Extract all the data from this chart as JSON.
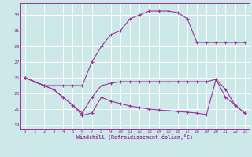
{
  "xlabel": "Windchill (Refroidissement éolien,°C)",
  "xlim": [
    -0.5,
    23.5
  ],
  "ylim": [
    18.5,
    34.5
  ],
  "yticks": [
    19,
    21,
    23,
    25,
    27,
    29,
    31,
    33
  ],
  "xticks": [
    0,
    1,
    2,
    3,
    4,
    5,
    6,
    7,
    8,
    9,
    10,
    11,
    12,
    13,
    14,
    15,
    16,
    17,
    18,
    19,
    20,
    21,
    22,
    23
  ],
  "bg_color": "#cce8e8",
  "grid_color": "#ffffff",
  "line_color": "#993399",
  "line1_x": [
    0,
    1,
    2,
    3,
    4,
    5,
    6,
    7,
    8,
    9,
    10,
    11,
    12,
    13,
    14,
    15,
    16,
    17,
    18,
    19,
    20,
    21,
    22,
    23
  ],
  "line1_y": [
    25,
    24.5,
    24.0,
    24.0,
    24.0,
    24.0,
    24.0,
    27.0,
    29.0,
    30.5,
    31.0,
    32.5,
    33.0,
    33.5,
    33.5,
    33.5,
    33.3,
    32.5,
    29.5,
    29.5,
    29.5,
    29.5,
    29.5,
    29.5
  ],
  "line2_x": [
    0,
    1,
    2,
    3,
    4,
    5,
    6,
    7,
    8,
    9,
    10,
    11,
    12,
    13,
    14,
    15,
    16,
    17,
    18,
    19,
    20,
    21,
    22,
    23
  ],
  "line2_y": [
    25,
    24.5,
    24.0,
    23.5,
    22.5,
    21.5,
    20.5,
    22.5,
    24.0,
    24.3,
    24.5,
    24.5,
    24.5,
    24.5,
    24.5,
    24.5,
    24.5,
    24.5,
    24.5,
    24.5,
    24.8,
    23.5,
    21.5,
    20.5
  ],
  "line3_x": [
    0,
    1,
    2,
    3,
    4,
    5,
    6,
    7,
    8,
    9,
    10,
    11,
    12,
    13,
    14,
    15,
    16,
    17,
    18,
    19,
    20,
    21,
    22,
    23
  ],
  "line3_y": [
    25,
    24.5,
    24.0,
    23.5,
    22.5,
    21.5,
    20.2,
    20.5,
    22.5,
    22.0,
    21.7,
    21.4,
    21.2,
    21.0,
    20.9,
    20.8,
    20.7,
    20.6,
    20.5,
    20.3,
    24.8,
    22.5,
    21.5,
    20.5
  ]
}
